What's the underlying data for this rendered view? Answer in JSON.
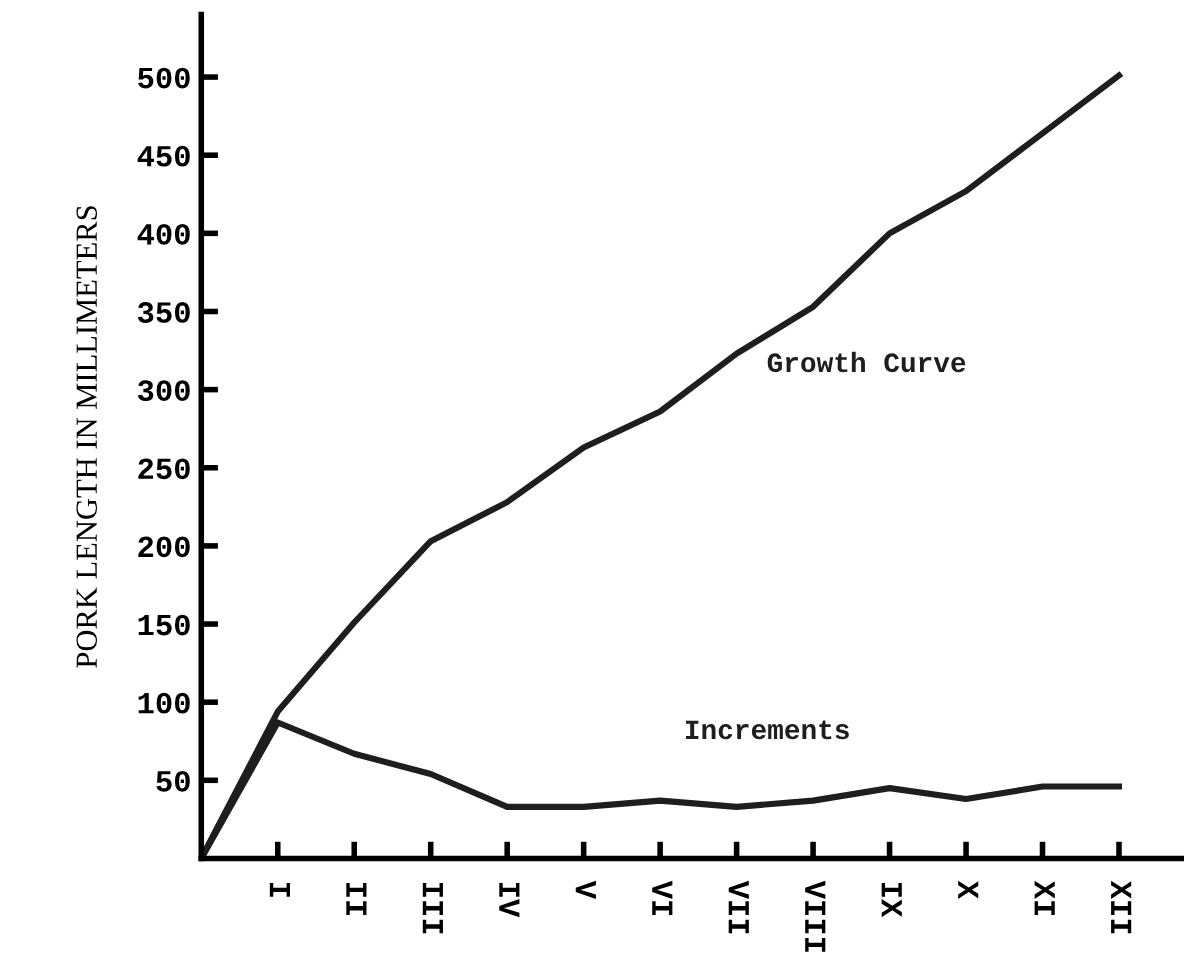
{
  "chart_data": {
    "type": "line",
    "ylabel": "PORK LENGTH IN MILLIMETERS",
    "categories": [
      null,
      "I",
      "II",
      "III",
      "IV",
      "V",
      "VI",
      "VII",
      "VIII",
      "IX",
      "X",
      "XI",
      "XII"
    ],
    "series": [
      {
        "name": "Growth Curve",
        "color": "#1e1e1e",
        "values": [
          0,
          94,
          151,
          203,
          228,
          263,
          286,
          323,
          353,
          400,
          427,
          464,
          501
        ]
      },
      {
        "name": "Increments",
        "color": "#1e1e1e",
        "values": [
          0,
          87,
          67,
          54,
          33,
          33,
          37,
          33,
          37,
          45,
          38,
          46,
          46
        ]
      }
    ],
    "ylim": [
      0,
      540
    ],
    "yticks": [
      50,
      100,
      150,
      200,
      250,
      300,
      350,
      400,
      450,
      500
    ],
    "grid": false,
    "legend": false,
    "marker": "none",
    "line_style": "solid"
  }
}
